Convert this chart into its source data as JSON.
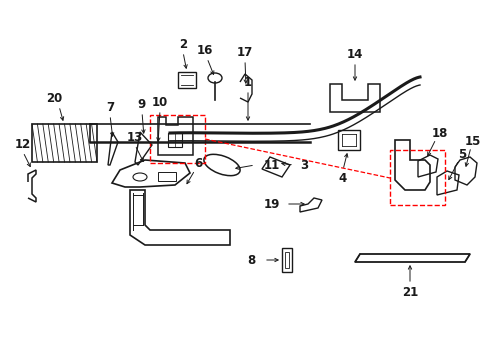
{
  "background_color": "#ffffff",
  "line_color": "#1a1a1a",
  "red_color": "#ff0000",
  "figsize": [
    4.89,
    3.6
  ],
  "dpi": 100,
  "label_fontsize": 8.5,
  "arrow_lw": 0.7
}
